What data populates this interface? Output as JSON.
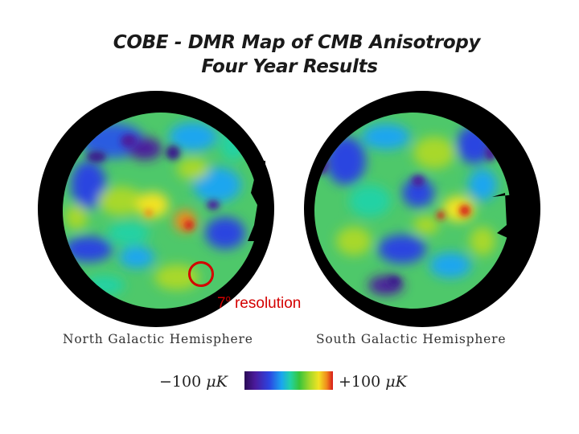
{
  "title": {
    "line1": "COBE - DMR Map of CMB Anisotropy",
    "line2": "Four Year Results"
  },
  "hemispheres": {
    "north_label": "North Galactic Hemisphere",
    "south_label": "South Galactic Hemisphere"
  },
  "annotation": {
    "resolution_value": "7",
    "resolution_degree": "o",
    "resolution_text": "resolution",
    "color": "#d40000"
  },
  "scale": {
    "min_label": "−100",
    "max_label": "+100",
    "unit": "μK",
    "colors": [
      "#2a0a55",
      "#4b1a9c",
      "#2b44e0",
      "#1aa6ef",
      "#22d2a4",
      "#38c43a",
      "#a8d82a",
      "#f2e323",
      "#f08a1c",
      "#d81a1a"
    ]
  }
}
